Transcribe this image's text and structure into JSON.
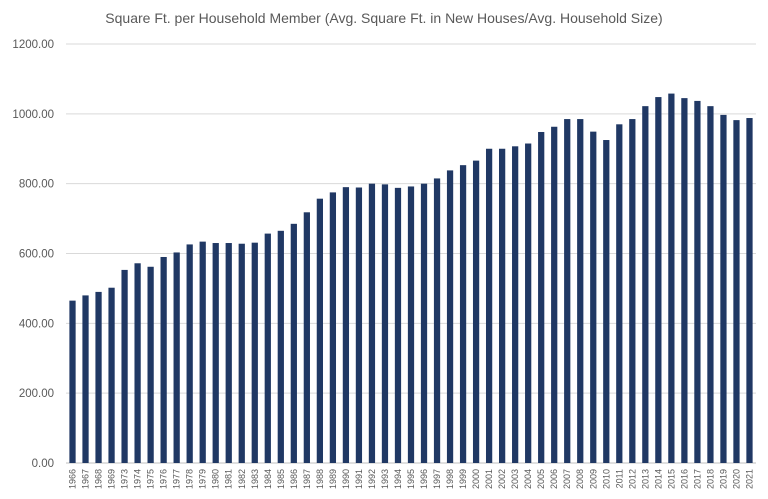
{
  "chart_data": {
    "type": "bar",
    "title": "Square Ft. per Household Member (Avg. Square Ft. in New Houses/Avg. Household Size)",
    "xlabel": "",
    "ylabel": "",
    "ylim": [
      0,
      1200
    ],
    "yticks": [
      "0.00",
      "200.00",
      "400.00",
      "600.00",
      "800.00",
      "1000.00",
      "1200.00"
    ],
    "grid": true,
    "legend": "none",
    "bar_color": "#203864",
    "categories": [
      "1966",
      "1967",
      "1968",
      "1969",
      "1973",
      "1974",
      "1975",
      "1976",
      "1977",
      "1978",
      "1979",
      "1980",
      "1981",
      "1982",
      "1983",
      "1984",
      "1985",
      "1986",
      "1987",
      "1988",
      "1989",
      "1990",
      "1991",
      "1992",
      "1993",
      "1994",
      "1995",
      "1996",
      "1997",
      "1998",
      "1999",
      "2000",
      "2001",
      "2002",
      "2003",
      "2004",
      "2005",
      "2006",
      "2007",
      "2008",
      "2009",
      "2010",
      "2011",
      "2012",
      "2013",
      "2014",
      "2015",
      "2016",
      "2017",
      "2018",
      "2019",
      "2020",
      "2021"
    ],
    "values": [
      465,
      480,
      490,
      502,
      553,
      572,
      562,
      590,
      603,
      626,
      634,
      630,
      630,
      628,
      631,
      657,
      665,
      685,
      718,
      757,
      775,
      790,
      789,
      800,
      798,
      788,
      792,
      800,
      815,
      838,
      853,
      866,
      900,
      900,
      907,
      915,
      948,
      963,
      985,
      985,
      949,
      925,
      970,
      985,
      1022,
      1048,
      1058,
      1045,
      1037,
      1022,
      997,
      982,
      988
    ]
  }
}
